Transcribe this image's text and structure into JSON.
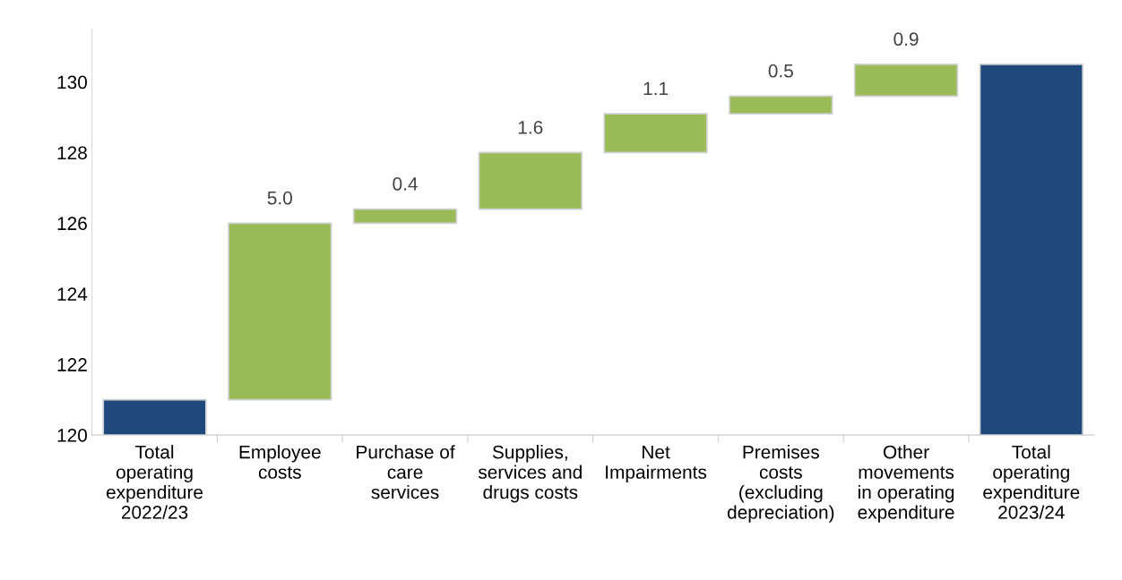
{
  "chart_data": {
    "type": "bar",
    "categories": [
      "Total\noperating\nexpenditure\n2022/23",
      "Employee\ncosts",
      "Purchase of\ncare\nservices",
      "Supplies,\nservices and\ndrugs costs",
      "Net\nImpairments",
      "Premises\ncosts\n(excluding\ndepreciation)",
      "Other\nmovements\nin operating\nexpenditure",
      "Total\noperating\nexpenditure\n2023/24"
    ],
    "values": [
      1.0,
      5.0,
      0.4,
      1.6,
      1.1,
      0.5,
      0.9,
      10.5
    ],
    "base": [
      120,
      121.0,
      126.0,
      126.4,
      128.0,
      129.1,
      129.6,
      120
    ],
    "colors": [
      "#1f497d",
      "#9bbb59",
      "#9bbb59",
      "#9bbb59",
      "#9bbb59",
      "#9bbb59",
      "#9bbb59",
      "#1f497d"
    ],
    "value_labels": [
      null,
      "5.0",
      "0.4",
      "1.6",
      "1.1",
      "0.5",
      "0.9",
      null
    ],
    "ylim": [
      120,
      131.5
    ],
    "yticks": [
      120,
      122,
      124,
      126,
      128,
      130
    ],
    "grid": false,
    "legend": false
  }
}
